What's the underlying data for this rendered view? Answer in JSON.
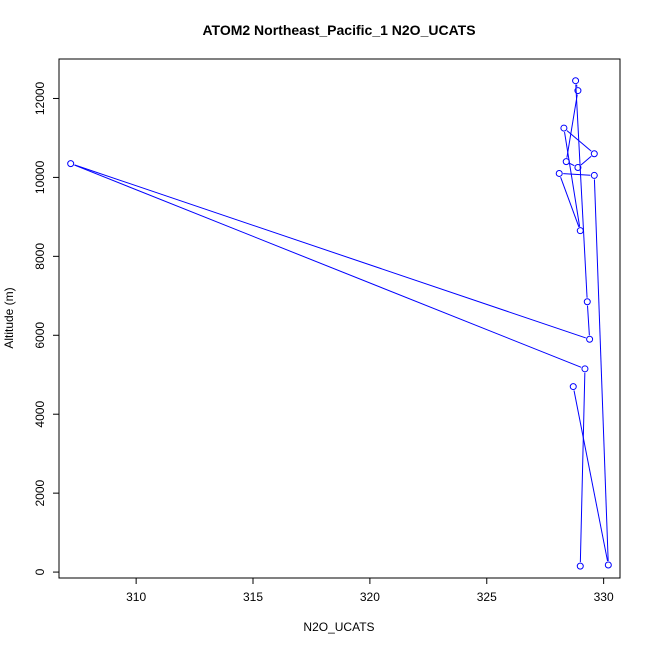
{
  "chart_data": {
    "type": "line",
    "title": "ATOM2 Northeast_Pacific_1 N2O_UCATS",
    "xlabel": "N2O_UCATS",
    "ylabel": "Altitude (m)",
    "xlim": [
      306.7,
      330.7
    ],
    "ylim": [
      -150,
      13000
    ],
    "xticks": [
      310,
      315,
      320,
      325,
      330
    ],
    "yticks": [
      0,
      2000,
      4000,
      6000,
      8000,
      10000,
      12000
    ],
    "grid": false,
    "legend": "none",
    "color": "#0000ff",
    "series": [
      {
        "points": [
          [
            329.0,
            150
          ],
          [
            329.2,
            5150
          ],
          [
            307.2,
            10350
          ],
          [
            329.4,
            5900
          ],
          [
            329.3,
            6850
          ],
          [
            328.8,
            12450
          ],
          [
            328.9,
            12200
          ],
          [
            328.4,
            10400
          ],
          [
            328.9,
            10250
          ],
          [
            329.6,
            10600
          ],
          [
            328.3,
            11250
          ],
          [
            329.0,
            8650
          ],
          [
            328.1,
            10100
          ],
          [
            329.6,
            10050
          ],
          [
            330.2,
            180
          ],
          [
            328.7,
            4700
          ]
        ]
      }
    ]
  }
}
